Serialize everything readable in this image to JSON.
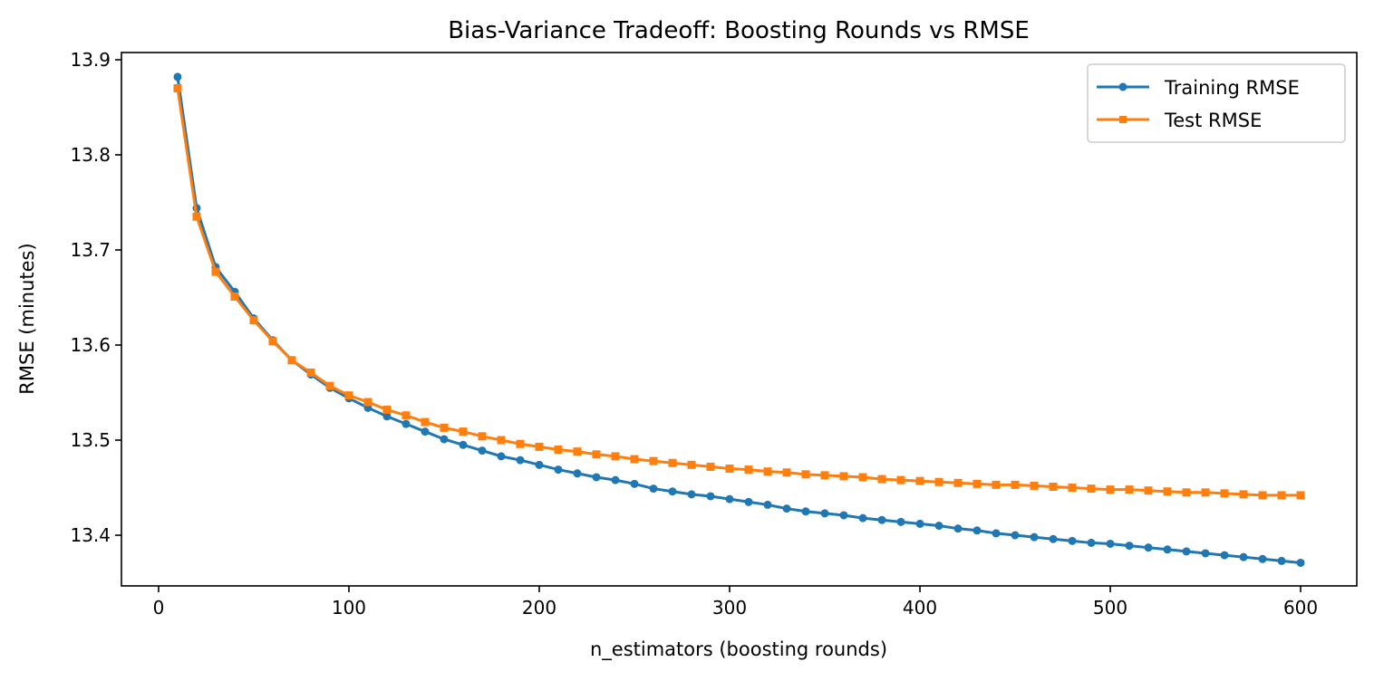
{
  "chart_data": {
    "type": "line",
    "title": "Bias-Variance Tradeoff: Boosting Rounds vs RMSE",
    "xlabel": "n_estimators (boosting rounds)",
    "ylabel": "RMSE (minutes)",
    "xlim": [
      -19.5,
      629.5
    ],
    "ylim": [
      13.3467,
      13.9076
    ],
    "xticks": [
      0,
      100,
      200,
      300,
      400,
      500,
      600
    ],
    "yticks": [
      13.4,
      13.5,
      13.6,
      13.7,
      13.8,
      13.9
    ],
    "ytick_labels": [
      "13.4",
      "13.5",
      "13.6",
      "13.7",
      "13.8",
      "13.9"
    ],
    "grid": false,
    "legend_position": "top-right",
    "x": [
      10,
      20,
      30,
      40,
      50,
      60,
      70,
      80,
      90,
      100,
      110,
      120,
      130,
      140,
      150,
      160,
      170,
      180,
      190,
      200,
      210,
      220,
      230,
      240,
      250,
      260,
      270,
      280,
      290,
      300,
      310,
      320,
      330,
      340,
      350,
      360,
      370,
      380,
      390,
      400,
      410,
      420,
      430,
      440,
      450,
      460,
      470,
      480,
      490,
      500,
      510,
      520,
      530,
      540,
      550,
      560,
      570,
      580,
      590,
      600
    ],
    "series": [
      {
        "name": "Training RMSE",
        "color": "#1f77b4",
        "marker": "circle",
        "values": [
          13.882,
          13.744,
          13.682,
          13.656,
          13.628,
          13.605,
          13.584,
          13.569,
          13.555,
          13.544,
          13.534,
          13.525,
          13.517,
          13.509,
          13.501,
          13.495,
          13.489,
          13.483,
          13.479,
          13.474,
          13.469,
          13.465,
          13.461,
          13.458,
          13.454,
          13.449,
          13.446,
          13.443,
          13.441,
          13.438,
          13.435,
          13.432,
          13.428,
          13.425,
          13.423,
          13.421,
          13.418,
          13.416,
          13.414,
          13.412,
          13.41,
          13.407,
          13.405,
          13.402,
          13.4,
          13.398,
          13.396,
          13.394,
          13.392,
          13.391,
          13.389,
          13.387,
          13.385,
          13.383,
          13.381,
          13.379,
          13.377,
          13.375,
          13.373,
          13.371
        ]
      },
      {
        "name": "Test RMSE",
        "color": "#ff7f0e",
        "marker": "square",
        "values": [
          13.87,
          13.735,
          13.677,
          13.651,
          13.626,
          13.604,
          13.584,
          13.571,
          13.557,
          13.547,
          13.54,
          13.532,
          13.526,
          13.519,
          13.513,
          13.509,
          13.504,
          13.5,
          13.496,
          13.493,
          13.49,
          13.488,
          13.485,
          13.483,
          13.48,
          13.478,
          13.476,
          13.474,
          13.472,
          13.47,
          13.469,
          13.467,
          13.466,
          13.464,
          13.463,
          13.462,
          13.461,
          13.459,
          13.458,
          13.457,
          13.456,
          13.455,
          13.454,
          13.453,
          13.453,
          13.452,
          13.451,
          13.45,
          13.449,
          13.448,
          13.448,
          13.447,
          13.446,
          13.445,
          13.445,
          13.444,
          13.443,
          13.442,
          13.442,
          13.442
        ]
      }
    ]
  }
}
